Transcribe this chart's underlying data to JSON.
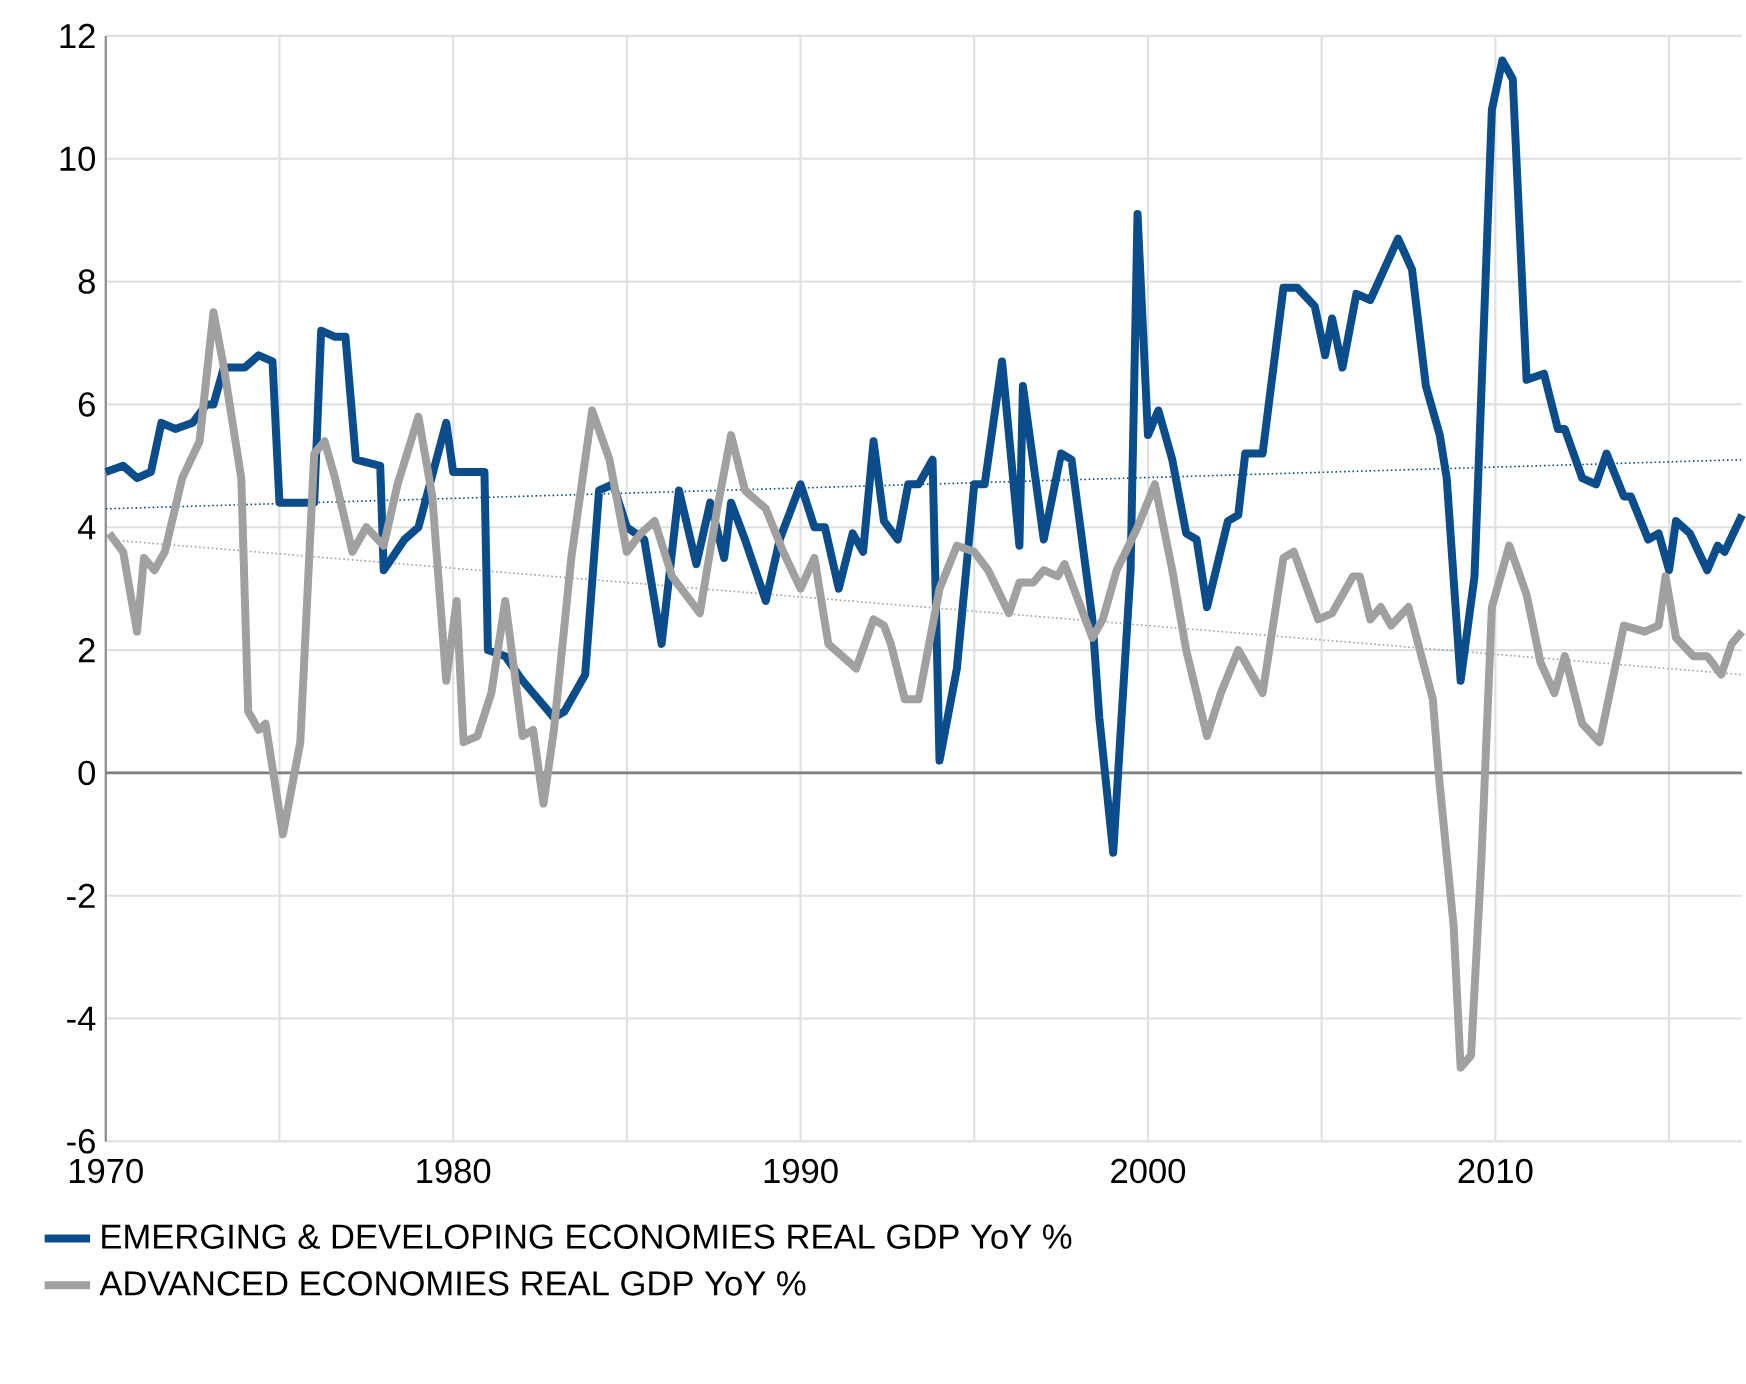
{
  "chart_data": {
    "type": "line",
    "grid": true,
    "legend": "bottom",
    "line_style": "solid",
    "marker": "none",
    "xlim": [
      1970,
      2017.1
    ],
    "ylim": [
      -6,
      12
    ],
    "xticks": [
      1970,
      {
        "value": 1975,
        "label": null
      },
      1980,
      {
        "value": 1985,
        "label": null
      },
      1990,
      {
        "value": 1995,
        "label": null
      },
      2000,
      {
        "value": 2005,
        "label": null
      },
      2010,
      {
        "value": 2015,
        "label": null
      }
    ],
    "yticks": [
      -6,
      -4,
      -2,
      0,
      2,
      4,
      6,
      8,
      10,
      12
    ],
    "ref_lines": [
      {
        "axis": "y",
        "value": 0,
        "color": "#7f7f7f"
      }
    ],
    "series": [
      {
        "name": "EMERGING & DEVELOPING ECONOMIES REAL GDP YoY %",
        "color": "#0b4d8a",
        "x": [
          1970,
          1970.5,
          1970.9,
          1971.3,
          1971.6,
          1972.0,
          1972.5,
          1972.9,
          1973.1,
          1973.4,
          1974.0,
          1974.4,
          1974.8,
          1975.0,
          1976.0,
          1976.2,
          1976.6,
          1976.9,
          1977.2,
          1977.9,
          1978.0,
          1978.6,
          1979.0,
          1979.8,
          1980.0,
          1980.9,
          1981.0,
          1981.5,
          1982.0,
          1982.9,
          1983.2,
          1983.8,
          1984.2,
          1984.6,
          1985.0,
          1985.5,
          1986.0,
          1986.5,
          1987.0,
          1987.4,
          1987.8,
          1988.0,
          1988.4,
          1989.0,
          1989.4,
          1990.0,
          1990.4,
          1990.7,
          1991.1,
          1991.5,
          1991.8,
          1992.1,
          1992.4,
          1992.8,
          1993.1,
          1993.4,
          1993.8,
          1994.0,
          1994.5,
          1995.0,
          1995.3,
          1995.8,
          1996.3,
          1996.4,
          1997.0,
          1997.5,
          1997.8,
          1998.4,
          1998.6,
          1999.0,
          1999.5,
          1999.7,
          2000.0,
          2000.3,
          2000.7,
          2001.1,
          2001.4,
          2001.7,
          2002.3,
          2002.6,
          2002.8,
          2003.3,
          2003.9,
          2004.3,
          2004.8,
          2005.1,
          2005.3,
          2005.6,
          2006.0,
          2006.4,
          2007.2,
          2007.6,
          2008.0,
          2008.4,
          2008.6,
          2009.0,
          2009.4,
          2009.9,
          2010.2,
          2010.5,
          2010.9,
          2011.4,
          2011.8,
          2012.0,
          2012.5,
          2012.9,
          2013.2,
          2013.7,
          2013.9,
          2014.4,
          2014.7,
          2015.0,
          2015.2,
          2015.6,
          2016.1,
          2016.4,
          2016.6,
          2017.1
        ],
        "values": [
          4.9,
          5.0,
          4.8,
          4.9,
          5.7,
          5.6,
          5.7,
          6.0,
          6.0,
          6.6,
          6.6,
          6.8,
          6.7,
          4.4,
          4.4,
          7.2,
          7.1,
          7.1,
          5.1,
          5.0,
          3.3,
          3.8,
          4.0,
          5.7,
          4.9,
          4.9,
          2.0,
          1.9,
          1.5,
          0.9,
          1.0,
          1.6,
          4.6,
          4.7,
          4.0,
          3.8,
          2.1,
          4.6,
          3.4,
          4.4,
          3.5,
          4.4,
          3.8,
          2.8,
          3.8,
          4.7,
          4.0,
          4.0,
          3.0,
          3.9,
          3.6,
          5.4,
          4.1,
          3.8,
          4.7,
          4.7,
          5.1,
          0.2,
          1.7,
          4.7,
          4.7,
          6.7,
          3.7,
          6.3,
          3.8,
          5.2,
          5.1,
          2.5,
          0.9,
          -1.3,
          3.3,
          9.1,
          5.5,
          5.9,
          5.1,
          3.9,
          3.8,
          2.7,
          4.1,
          4.2,
          5.2,
          5.2,
          7.9,
          7.9,
          7.6,
          6.8,
          7.4,
          6.6,
          7.8,
          7.7,
          8.7,
          8.2,
          6.3,
          5.5,
          4.8,
          1.5,
          3.2,
          10.8,
          11.6,
          11.3,
          6.4,
          6.5,
          5.6,
          5.6,
          4.8,
          4.7,
          5.2,
          4.5,
          4.5,
          3.8,
          3.9,
          3.3,
          4.1,
          3.9,
          3.3,
          3.7,
          3.6,
          4.2
        ]
      },
      {
        "name": "ADVANCED ECONOMIES REAL GDP YoY %",
        "color": "#a0a0a0",
        "x": [
          1970.1,
          1970.5,
          1970.9,
          1971.1,
          1971.4,
          1971.7,
          1972.2,
          1972.7,
          1973.1,
          1973.4,
          1973.9,
          1974.1,
          1974.4,
          1974.6,
          1975.1,
          1975.6,
          1976.0,
          1976.3,
          1976.6,
          1977.1,
          1977.5,
          1978.0,
          1978.4,
          1979.0,
          1979.4,
          1979.8,
          1980.1,
          1980.3,
          1980.7,
          1981.1,
          1981.5,
          1982.0,
          1982.3,
          1982.6,
          1982.9,
          1983.4,
          1984.0,
          1984.5,
          1985.0,
          1985.4,
          1985.8,
          1986.3,
          1987.1,
          1987.6,
          1988.0,
          1988.4,
          1989.0,
          1989.5,
          1990.0,
          1990.4,
          1990.8,
          1991.4,
          1991.6,
          1992.1,
          1992.4,
          1992.6,
          1993.0,
          1993.4,
          1994.0,
          1994.5,
          1995.0,
          1995.4,
          1996.0,
          1996.3,
          1996.7,
          1997.0,
          1997.4,
          1997.6,
          1998.4,
          1998.7,
          1999.1,
          1999.7,
          2000.2,
          2000.7,
          2001.1,
          2001.7,
          2002.1,
          2002.6,
          2003.3,
          2003.9,
          2004.2,
          2004.9,
          2005.3,
          2005.9,
          2006.1,
          2006.4,
          2006.7,
          2007.0,
          2007.5,
          2008.2,
          2008.4,
          2008.8,
          2009.0,
          2009.3,
          2009.6,
          2009.9,
          2010.4,
          2010.9,
          2011.3,
          2011.7,
          2012.0,
          2012.5,
          2013.0,
          2013.7,
          2014.3,
          2014.7,
          2014.9,
          2015.2,
          2015.7,
          2016.1,
          2016.5,
          2016.8,
          2017.1
        ],
        "values": [
          3.9,
          3.6,
          2.3,
          3.5,
          3.3,
          3.6,
          4.8,
          5.4,
          7.5,
          6.6,
          4.8,
          1.0,
          0.7,
          0.8,
          -1.0,
          0.5,
          5.2,
          5.4,
          4.8,
          3.6,
          4.0,
          3.7,
          4.7,
          5.8,
          4.5,
          1.5,
          2.8,
          0.5,
          0.6,
          1.3,
          2.8,
          0.6,
          0.7,
          -0.5,
          0.7,
          3.5,
          5.9,
          5.1,
          3.6,
          3.9,
          4.1,
          3.2,
          2.6,
          4.3,
          5.5,
          4.6,
          4.3,
          3.6,
          3.0,
          3.5,
          2.1,
          1.8,
          1.7,
          2.5,
          2.4,
          2.1,
          1.2,
          1.2,
          3.0,
          3.7,
          3.6,
          3.3,
          2.6,
          3.1,
          3.1,
          3.3,
          3.2,
          3.4,
          2.2,
          2.5,
          3.3,
          4.0,
          4.7,
          3.3,
          2.0,
          0.6,
          1.3,
          2.0,
          1.3,
          3.5,
          3.6,
          2.5,
          2.6,
          3.2,
          3.2,
          2.5,
          2.7,
          2.4,
          2.7,
          1.2,
          -0.2,
          -2.5,
          -4.8,
          -4.6,
          -1.4,
          2.7,
          3.7,
          2.9,
          1.8,
          1.3,
          1.9,
          0.8,
          0.5,
          2.4,
          2.3,
          2.4,
          3.2,
          2.2,
          1.9,
          1.9,
          1.6,
          2.1,
          2.3
        ]
      },
      {
        "color": "#0b4d8a",
        "line_style": "dotted",
        "x": [
          1970,
          2017.1
        ],
        "values": [
          4.3,
          5.1
        ]
      },
      {
        "color": "#a0a0a0",
        "line_style": "dotted",
        "x": [
          1970,
          2017.1
        ],
        "values": [
          3.8,
          1.6
        ]
      }
    ]
  }
}
